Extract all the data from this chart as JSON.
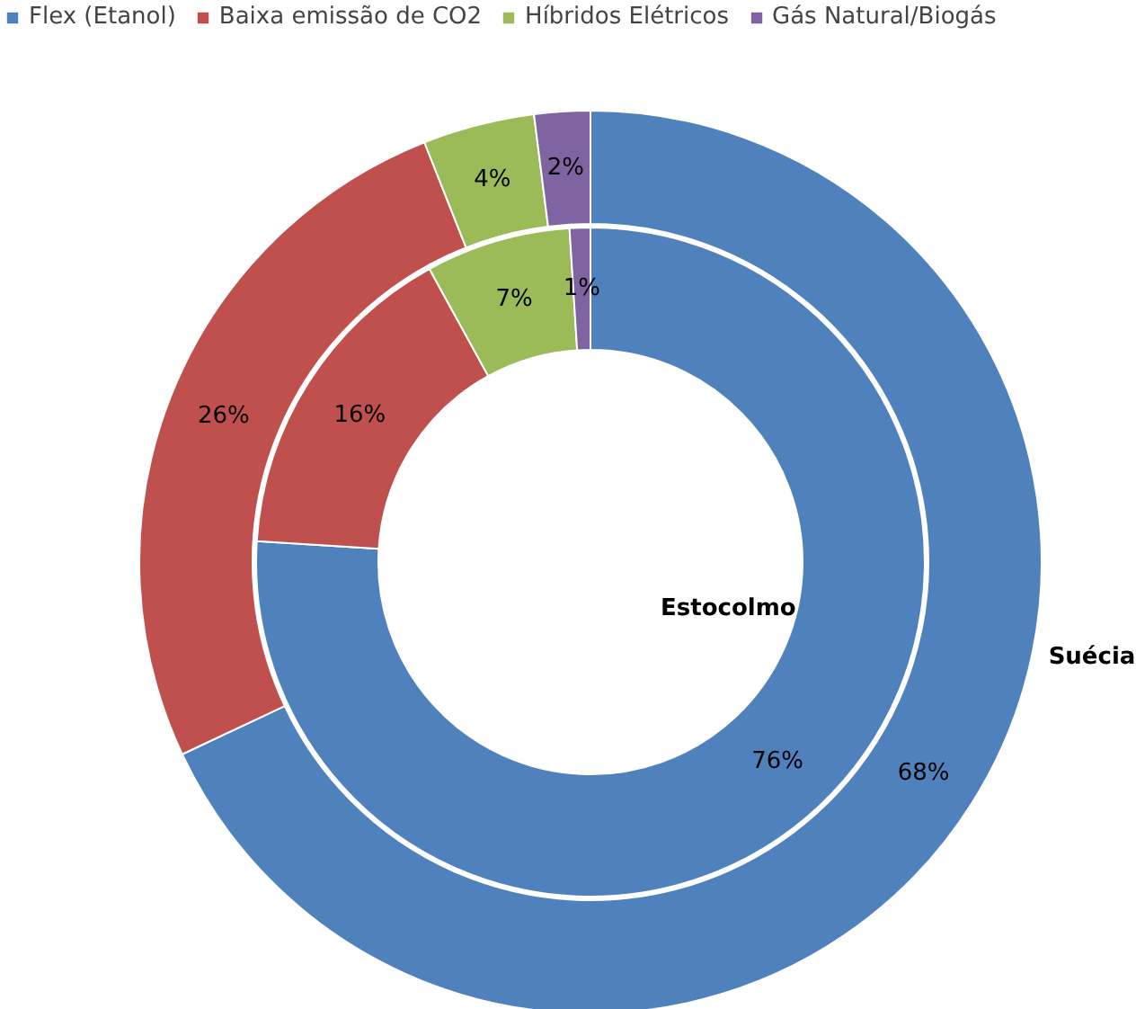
{
  "chart_data": {
    "type": "donut",
    "legend": "top",
    "categories": [
      "Flex (Etanol)",
      "Baixa emissão de CO2",
      "Híbridos Elétricos",
      "Gás Natural/Biogás"
    ],
    "colors": [
      "#4f81bd",
      "#c0504d",
      "#9bbb59",
      "#8064a2"
    ],
    "series": [
      {
        "name": "Estocolmo",
        "values": [
          76,
          16,
          7,
          1
        ],
        "value_labels": [
          "76%",
          "16%",
          "7%",
          "1%"
        ]
      },
      {
        "name": "Suécia",
        "values": [
          68,
          26,
          4,
          2
        ],
        "value_labels": [
          "68%",
          "26%",
          "4%",
          "2%"
        ]
      }
    ]
  }
}
